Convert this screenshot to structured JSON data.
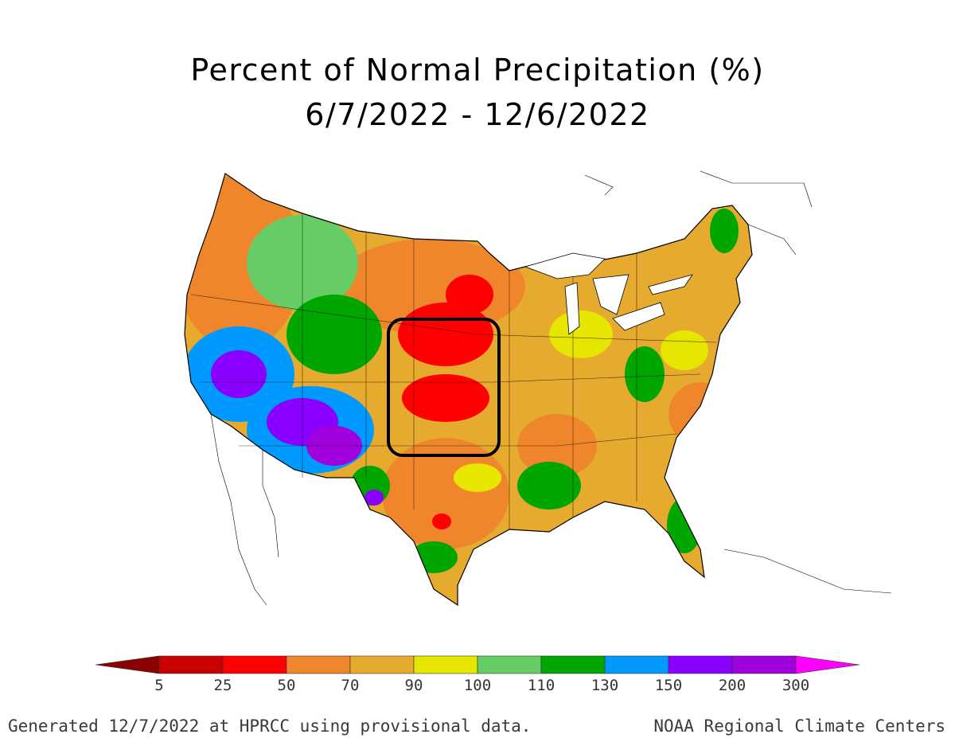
{
  "title": {
    "line1": "Percent of Normal Precipitation (%)",
    "line2": "6/7/2022 - 12/6/2022"
  },
  "legend": {
    "colors": [
      "#8b0000",
      "#c80000",
      "#ff0000",
      "#f0862c",
      "#e6aa2e",
      "#e6e600",
      "#66cc66",
      "#00a600",
      "#0099ff",
      "#8a00ff",
      "#a000dc",
      "#ff00ff"
    ],
    "labels": [
      "5",
      "25",
      "50",
      "70",
      "90",
      "100",
      "110",
      "130",
      "150",
      "200",
      "300"
    ]
  },
  "footer": {
    "left": "Generated 12/7/2022 at HPRCC using provisional data.",
    "right": "NOAA Regional Climate Centers"
  }
}
